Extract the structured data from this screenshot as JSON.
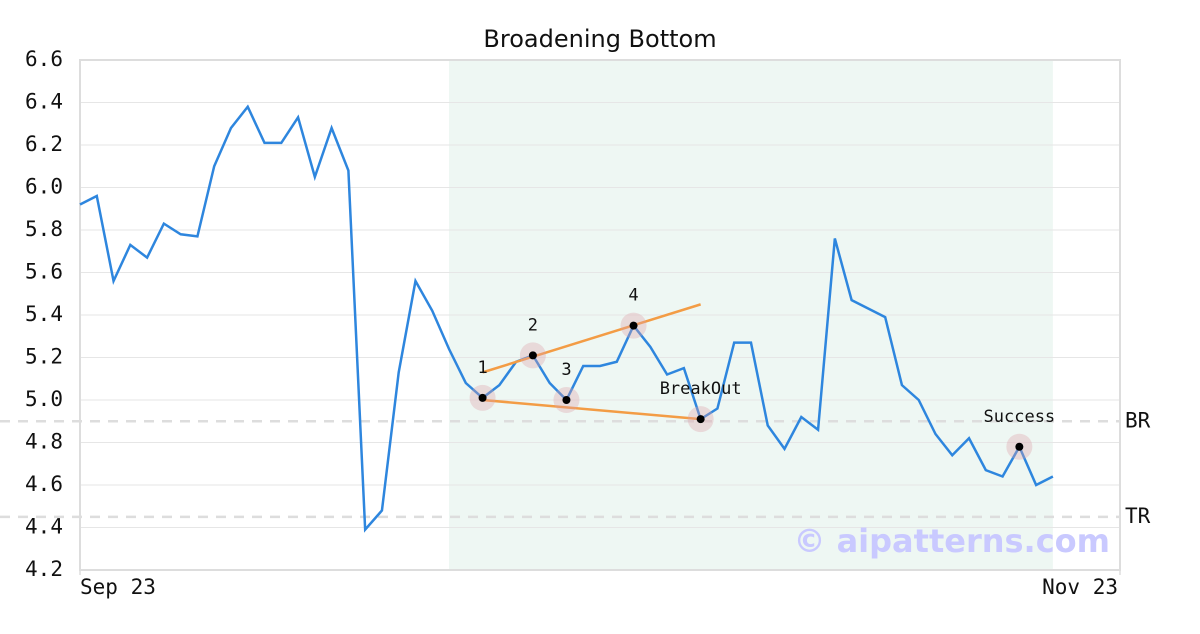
{
  "chart_data": {
    "type": "line",
    "title": "Broadening Bottom",
    "x": [
      0,
      1,
      2,
      3,
      4,
      5,
      6,
      7,
      8,
      9,
      10,
      11,
      12,
      13,
      14,
      15,
      16,
      17,
      18,
      19,
      20,
      21,
      22,
      23,
      24,
      25,
      26,
      27,
      28,
      29,
      30,
      31,
      32,
      33,
      34,
      35,
      36,
      37,
      38,
      39,
      40,
      41,
      42,
      43,
      44,
      45,
      46,
      47,
      48,
      49,
      50,
      51,
      52,
      53,
      54,
      55,
      56,
      57,
      58
    ],
    "series": [
      {
        "color": "#2e86de",
        "values": [
          5.92,
          5.96,
          5.56,
          5.73,
          5.67,
          5.83,
          5.78,
          5.77,
          6.1,
          6.28,
          6.38,
          6.21,
          6.21,
          6.33,
          6.05,
          6.28,
          6.08,
          4.39,
          4.48,
          5.13,
          5.56,
          5.42,
          5.24,
          5.08,
          5.01,
          5.07,
          5.18,
          5.21,
          5.08,
          5.0,
          5.16,
          5.16,
          5.18,
          5.35,
          5.25,
          5.12,
          5.15,
          4.91,
          4.96,
          5.27,
          5.27,
          4.88,
          4.77,
          4.92,
          4.86,
          5.76,
          5.47,
          5.43,
          5.39,
          5.07,
          5.0,
          4.84,
          4.74,
          4.82,
          4.67,
          4.64,
          4.78,
          4.6,
          4.64
        ]
      }
    ],
    "xlim": [
      0,
      62
    ],
    "xticks": [
      {
        "value": 0,
        "label": "Sep 23"
      },
      {
        "value": 62,
        "label": "Nov 23"
      }
    ],
    "ylim": [
      4.2,
      6.6
    ],
    "yticks": [
      4.2,
      4.4,
      4.6,
      4.8,
      {
        "value": 5,
        "label": "5.0"
      },
      5.2,
      5.4,
      5.6,
      5.8,
      {
        "value": 6,
        "label": "6.0"
      },
      6.2,
      6.4,
      6.6
    ],
    "grid": true,
    "shaded_region": {
      "x": [
        22,
        58
      ],
      "color": "#eef7f3"
    },
    "trend_lines": [
      {
        "x": [
          24,
          37
        ],
        "y": [
          5.13,
          5.45
        ],
        "color": "#f39c45"
      },
      {
        "x": [
          24,
          37
        ],
        "y": [
          5.0,
          4.91
        ],
        "color": "#f39c45"
      }
    ],
    "points": [
      {
        "label": "1",
        "x": 24,
        "y": 5.01
      },
      {
        "label": "2",
        "x": 27,
        "y": 5.21
      },
      {
        "label": "3",
        "x": 29,
        "y": 5.0
      },
      {
        "label": "4",
        "x": 33,
        "y": 5.35
      },
      {
        "label": "BreakOut",
        "x": 37,
        "y": 4.91
      },
      {
        "label": "Success",
        "x": 56,
        "y": 4.78
      }
    ],
    "levels": [
      {
        "label": "BR",
        "y": 4.9
      },
      {
        "label": "TR",
        "y": 4.45
      }
    ],
    "watermark": "© aipatterns.com"
  }
}
